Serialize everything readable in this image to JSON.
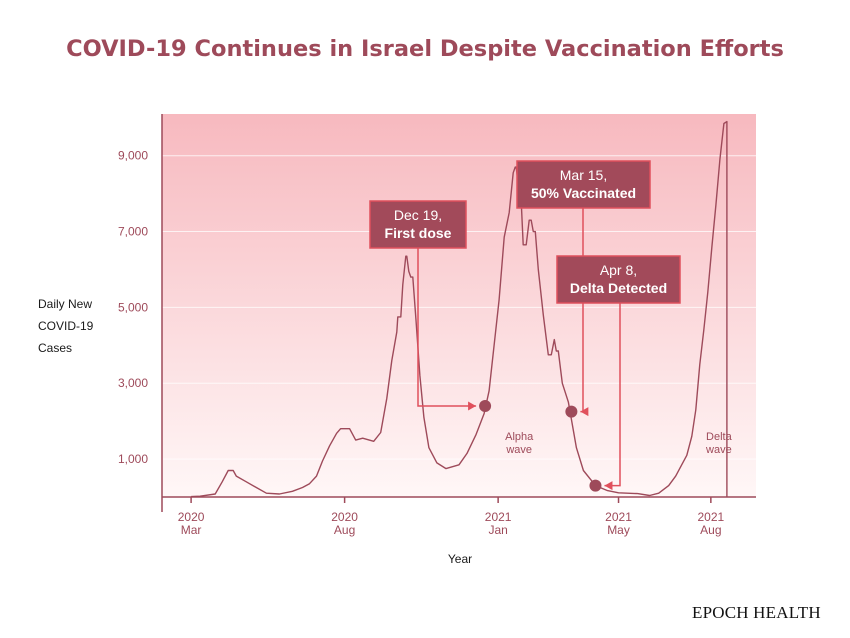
{
  "chart_data": {
    "type": "line",
    "title": "COVID-19 Continues in Israel Despite Vaccination Efforts",
    "ylabel_lines": [
      "Daily New",
      "COVID-19",
      "Cases"
    ],
    "xlabel": "Year",
    "ylim": [
      0,
      10100
    ],
    "xlim": [
      "2020-02-01",
      "2021-09-15"
    ],
    "y_ticks": [
      {
        "value": 1000,
        "label": "1,000"
      },
      {
        "value": 3000,
        "label": "3,000"
      },
      {
        "value": 5000,
        "label": "5,000"
      },
      {
        "value": 7000,
        "label": "7,000"
      },
      {
        "value": 9000,
        "label": "9,000"
      }
    ],
    "x_ticks": [
      {
        "date": "2020-03-01",
        "year": "2020",
        "month": "Mar"
      },
      {
        "date": "2020-08-01",
        "year": "2020",
        "month": "Aug"
      },
      {
        "date": "2021-01-01",
        "year": "2021",
        "month": "Jan"
      },
      {
        "date": "2021-05-01",
        "year": "2021",
        "month": "May"
      },
      {
        "date": "2021-08-01",
        "year": "2021",
        "month": "Aug"
      }
    ],
    "grid": true,
    "series": [
      {
        "name": "",
        "color": "#9e4a5a",
        "points": [
          [
            "2020-03-01",
            10
          ],
          [
            "2020-03-10",
            20
          ],
          [
            "2020-03-25",
            80
          ],
          [
            "2020-04-01",
            400
          ],
          [
            "2020-04-07",
            700
          ],
          [
            "2020-04-12",
            700
          ],
          [
            "2020-04-15",
            550
          ],
          [
            "2020-04-25",
            400
          ],
          [
            "2020-05-05",
            250
          ],
          [
            "2020-05-15",
            100
          ],
          [
            "2020-05-28",
            80
          ],
          [
            "2020-06-10",
            150
          ],
          [
            "2020-06-20",
            250
          ],
          [
            "2020-06-27",
            350
          ],
          [
            "2020-07-04",
            550
          ],
          [
            "2020-07-10",
            950
          ],
          [
            "2020-07-17",
            1350
          ],
          [
            "2020-07-24",
            1680
          ],
          [
            "2020-07-28",
            1800
          ],
          [
            "2020-08-06",
            1800
          ],
          [
            "2020-08-12",
            1500
          ],
          [
            "2020-08-19",
            1550
          ],
          [
            "2020-08-30",
            1470
          ],
          [
            "2020-09-06",
            1700
          ],
          [
            "2020-09-12",
            2600
          ],
          [
            "2020-09-17",
            3600
          ],
          [
            "2020-09-22",
            4350
          ],
          [
            "2020-09-23",
            4750
          ],
          [
            "2020-09-26",
            4750
          ],
          [
            "2020-09-28",
            5600
          ],
          [
            "2020-10-01",
            6350
          ],
          [
            "2020-10-02",
            6350
          ],
          [
            "2020-10-04",
            5950
          ],
          [
            "2020-10-06",
            5800
          ],
          [
            "2020-10-08",
            5800
          ],
          [
            "2020-10-11",
            4700
          ],
          [
            "2020-10-15",
            3200
          ],
          [
            "2020-10-19",
            2100
          ],
          [
            "2020-10-24",
            1300
          ],
          [
            "2020-11-01",
            900
          ],
          [
            "2020-11-10",
            750
          ],
          [
            "2020-11-23",
            850
          ],
          [
            "2020-12-01",
            1150
          ],
          [
            "2020-12-10",
            1650
          ],
          [
            "2020-12-18",
            2200
          ],
          [
            "2020-12-23",
            2800
          ],
          [
            "2020-12-28",
            4000
          ],
          [
            "2021-01-02",
            5200
          ],
          [
            "2021-01-07",
            6850
          ],
          [
            "2021-01-12",
            7500
          ],
          [
            "2021-01-16",
            8550
          ],
          [
            "2021-01-18",
            8700
          ],
          [
            "2021-01-19",
            8700
          ],
          [
            "2021-01-22",
            8000
          ],
          [
            "2021-01-24",
            7800
          ],
          [
            "2021-01-26",
            6650
          ],
          [
            "2021-01-29",
            6650
          ],
          [
            "2021-02-01",
            7300
          ],
          [
            "2021-02-03",
            7300
          ],
          [
            "2021-02-05",
            7000
          ],
          [
            "2021-02-07",
            7000
          ],
          [
            "2021-02-10",
            6000
          ],
          [
            "2021-02-15",
            4800
          ],
          [
            "2021-02-20",
            3750
          ],
          [
            "2021-02-23",
            3750
          ],
          [
            "2021-02-26",
            4150
          ],
          [
            "2021-02-28",
            3850
          ],
          [
            "2021-03-02",
            3850
          ],
          [
            "2021-03-06",
            3000
          ],
          [
            "2021-03-12",
            2500
          ],
          [
            "2021-03-20",
            1300
          ],
          [
            "2021-03-27",
            700
          ],
          [
            "2021-04-08",
            300
          ],
          [
            "2021-04-20",
            170
          ],
          [
            "2021-05-01",
            110
          ],
          [
            "2021-05-20",
            90
          ],
          [
            "2021-06-01",
            40
          ],
          [
            "2021-06-10",
            100
          ],
          [
            "2021-06-20",
            300
          ],
          [
            "2021-06-27",
            550
          ],
          [
            "2021-07-02",
            800
          ],
          [
            "2021-07-08",
            1100
          ],
          [
            "2021-07-13",
            1600
          ],
          [
            "2021-07-17",
            2300
          ],
          [
            "2021-07-21",
            3500
          ],
          [
            "2021-07-25",
            4400
          ],
          [
            "2021-07-29",
            5400
          ],
          [
            "2021-08-02",
            6600
          ],
          [
            "2021-08-06",
            7700
          ],
          [
            "2021-08-10",
            8900
          ],
          [
            "2021-08-14",
            9850
          ],
          [
            "2021-08-17",
            9900
          ],
          [
            "2021-08-17",
            0
          ]
        ]
      }
    ],
    "annotations": [
      {
        "line1": "Dec 19,",
        "line2": "First dose",
        "date": "2020-12-19",
        "value": 2400
      },
      {
        "line1": "Mar 15,",
        "line2": "50% Vaccinated",
        "date": "2021-03-15",
        "value": 2250
      },
      {
        "line1": "Apr 8,",
        "line2": "Delta Detected",
        "date": "2021-04-08",
        "value": 300
      }
    ],
    "wave_labels": [
      {
        "line1": "Alpha",
        "line2": "wave"
      },
      {
        "line1": "Delta",
        "line2": "wave"
      }
    ]
  },
  "brand": "EPOCH HEALTH"
}
